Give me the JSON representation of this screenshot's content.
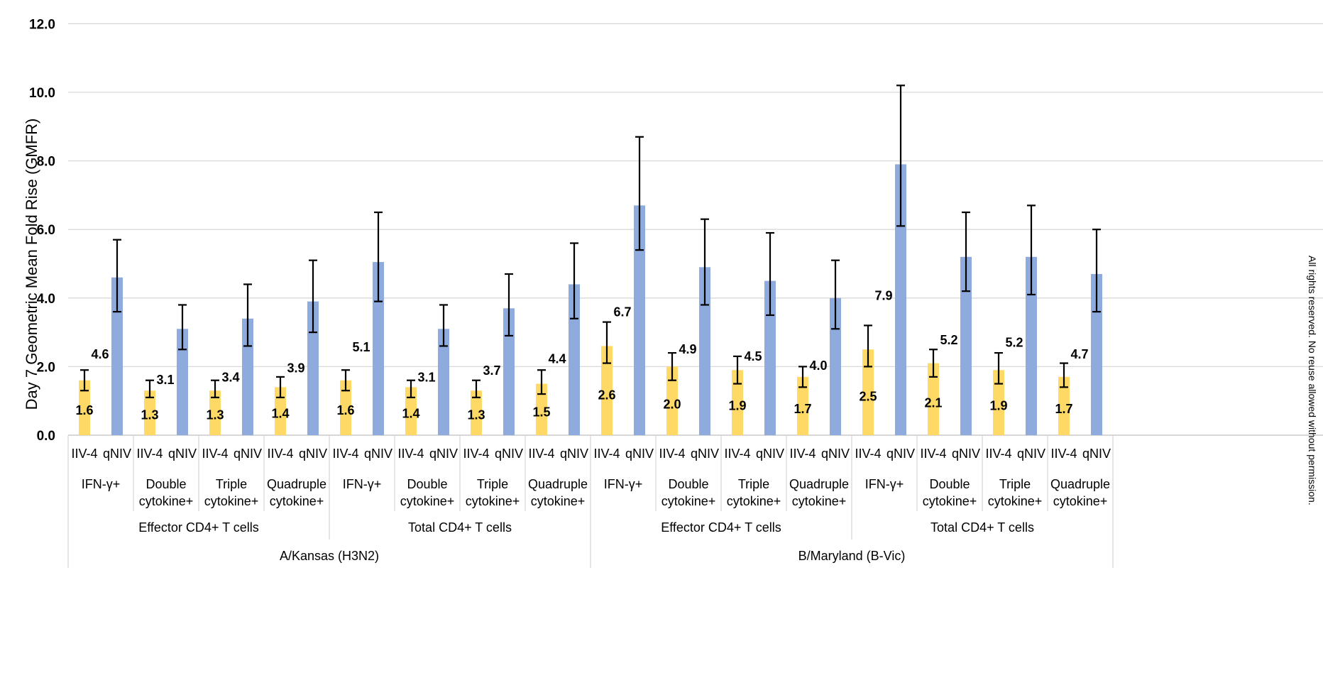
{
  "chart_data": {
    "type": "bar",
    "ylabel": "Day 7 Geometric Mean Fold Rise (GMFR)",
    "ylim": [
      0,
      12
    ],
    "yticks": [
      "0.0",
      "2.0",
      "4.0",
      "6.0",
      "8.0",
      "10.0",
      "12.0"
    ],
    "grid": true,
    "legend": "none",
    "colors": {
      "IIV-4": "#FFD966",
      "qNIV": "#8FAADC"
    },
    "categories": [
      [
        "IIV-4",
        "qNIV"
      ],
      [
        "IFN-γ+",
        "Double cytokine+",
        "Triple cytokine+",
        "Quadruple cytokine+"
      ],
      [
        "Effector CD4+ T cells",
        "Total CD4+ T cells"
      ],
      [
        "A/Kansas (H3N2)",
        "B/Maryland (B-Vic)"
      ]
    ],
    "bars": [
      {
        "vaccine": "IIV-4",
        "cytokine": "IFN-γ+",
        "cells": "Effector CD4+ T cells",
        "strain": "A/Kansas (H3N2)",
        "value": 1.6,
        "label": "1.6",
        "err_low": 1.3,
        "err_high": 1.9
      },
      {
        "vaccine": "qNIV",
        "cytokine": "IFN-γ+",
        "cells": "Effector CD4+ T cells",
        "strain": "A/Kansas (H3N2)",
        "value": 4.6,
        "label": "4.6",
        "err_low": 3.6,
        "err_high": 5.7
      },
      {
        "vaccine": "IIV-4",
        "cytokine": "Double cytokine+",
        "cells": "Effector CD4+ T cells",
        "strain": "A/Kansas (H3N2)",
        "value": 1.3,
        "label": "1.3",
        "err_low": 1.1,
        "err_high": 1.6
      },
      {
        "vaccine": "qNIV",
        "cytokine": "Double cytokine+",
        "cells": "Effector CD4+ T cells",
        "strain": "A/Kansas (H3N2)",
        "value": 3.1,
        "label": "3.1",
        "err_low": 2.5,
        "err_high": 3.8
      },
      {
        "vaccine": "IIV-4",
        "cytokine": "Triple cytokine+",
        "cells": "Effector CD4+ T cells",
        "strain": "A/Kansas (H3N2)",
        "value": 1.3,
        "label": "1.3",
        "err_low": 1.1,
        "err_high": 1.6
      },
      {
        "vaccine": "qNIV",
        "cytokine": "Triple cytokine+",
        "cells": "Effector CD4+ T cells",
        "strain": "A/Kansas (H3N2)",
        "value": 3.4,
        "label": "3.4",
        "err_low": 2.6,
        "err_high": 4.4
      },
      {
        "vaccine": "IIV-4",
        "cytokine": "Quadruple cytokine+",
        "cells": "Effector CD4+ T cells",
        "strain": "A/Kansas (H3N2)",
        "value": 1.4,
        "label": "1.4",
        "err_low": 1.1,
        "err_high": 1.7
      },
      {
        "vaccine": "qNIV",
        "cytokine": "Quadruple cytokine+",
        "cells": "Effector CD4+ T cells",
        "strain": "A/Kansas (H3N2)",
        "value": 3.9,
        "label": "3.9",
        "err_low": 3.0,
        "err_high": 5.1
      },
      {
        "vaccine": "IIV-4",
        "cytokine": "IFN-γ+",
        "cells": "Total CD4+ T cells",
        "strain": "A/Kansas (H3N2)",
        "value": 1.6,
        "label": "1.6",
        "err_low": 1.3,
        "err_high": 1.9
      },
      {
        "vaccine": "qNIV",
        "cytokine": "IFN-γ+",
        "cells": "Total CD4+ T cells",
        "strain": "A/Kansas (H3N2)",
        "value": 5.05,
        "label": "5.1",
        "err_low": 3.9,
        "err_high": 6.5
      },
      {
        "vaccine": "IIV-4",
        "cytokine": "Double cytokine+",
        "cells": "Total CD4+ T cells",
        "strain": "A/Kansas (H3N2)",
        "value": 1.4,
        "label": "1.4",
        "err_low": 1.1,
        "err_high": 1.6
      },
      {
        "vaccine": "qNIV",
        "cytokine": "Double cytokine+",
        "cells": "Total CD4+ T cells",
        "strain": "A/Kansas (H3N2)",
        "value": 3.1,
        "label": "3.1",
        "err_low": 2.6,
        "err_high": 3.8
      },
      {
        "vaccine": "IIV-4",
        "cytokine": "Triple cytokine+",
        "cells": "Total CD4+ T cells",
        "strain": "A/Kansas (H3N2)",
        "value": 1.3,
        "label": "1.3",
        "err_low": 1.1,
        "err_high": 1.6
      },
      {
        "vaccine": "qNIV",
        "cytokine": "Triple cytokine+",
        "cells": "Total CD4+ T cells",
        "strain": "A/Kansas (H3N2)",
        "value": 3.7,
        "label": "3.7",
        "err_low": 2.9,
        "err_high": 4.7
      },
      {
        "vaccine": "IIV-4",
        "cytokine": "Quadruple cytokine+",
        "cells": "Total CD4+ T cells",
        "strain": "A/Kansas (H3N2)",
        "value": 1.5,
        "label": "1.5",
        "err_low": 1.2,
        "err_high": 1.9
      },
      {
        "vaccine": "qNIV",
        "cytokine": "Quadruple cytokine+",
        "cells": "Total CD4+ T cells",
        "strain": "A/Kansas (H3N2)",
        "value": 4.4,
        "label": "4.4",
        "err_low": 3.4,
        "err_high": 5.6
      },
      {
        "vaccine": "IIV-4",
        "cytokine": "IFN-γ+",
        "cells": "Effector CD4+ T cells",
        "strain": "B/Maryland (B-Vic)",
        "value": 2.6,
        "label": "2.6",
        "err_low": 2.1,
        "err_high": 3.3
      },
      {
        "vaccine": "qNIV",
        "cytokine": "IFN-γ+",
        "cells": "Effector CD4+ T cells",
        "strain": "B/Maryland (B-Vic)",
        "value": 6.7,
        "label": "6.7",
        "err_low": 5.4,
        "err_high": 8.7
      },
      {
        "vaccine": "IIV-4",
        "cytokine": "Double cytokine+",
        "cells": "Effector CD4+ T cells",
        "strain": "B/Maryland (B-Vic)",
        "value": 2.0,
        "label": "2.0",
        "err_low": 1.6,
        "err_high": 2.4
      },
      {
        "vaccine": "qNIV",
        "cytokine": "Double cytokine+",
        "cells": "Effector CD4+ T cells",
        "strain": "B/Maryland (B-Vic)",
        "value": 4.9,
        "label": "4.9",
        "err_low": 3.8,
        "err_high": 6.3
      },
      {
        "vaccine": "IIV-4",
        "cytokine": "Triple cytokine+",
        "cells": "Effector CD4+ T cells",
        "strain": "B/Maryland (B-Vic)",
        "value": 1.9,
        "label": "1.9",
        "err_low": 1.5,
        "err_high": 2.3
      },
      {
        "vaccine": "qNIV",
        "cytokine": "Triple cytokine+",
        "cells": "Effector CD4+ T cells",
        "strain": "B/Maryland (B-Vic)",
        "value": 4.5,
        "label": "4.5",
        "err_low": 3.5,
        "err_high": 5.9
      },
      {
        "vaccine": "IIV-4",
        "cytokine": "Quadruple cytokine+",
        "cells": "Effector CD4+ T cells",
        "strain": "B/Maryland (B-Vic)",
        "value": 1.7,
        "label": "1.7",
        "err_low": 1.4,
        "err_high": 2.0
      },
      {
        "vaccine": "qNIV",
        "cytokine": "Quadruple cytokine+",
        "cells": "Effector CD4+ T cells",
        "strain": "B/Maryland (B-Vic)",
        "value": 4.0,
        "label": "4.0",
        "err_low": 3.1,
        "err_high": 5.1
      },
      {
        "vaccine": "IIV-4",
        "cytokine": "IFN-γ+",
        "cells": "Total CD4+ T cells",
        "strain": "B/Maryland (B-Vic)",
        "value": 2.5,
        "label": "2.5",
        "err_low": 2.0,
        "err_high": 3.2
      },
      {
        "vaccine": "qNIV",
        "cytokine": "IFN-γ+",
        "cells": "Total CD4+ T cells",
        "strain": "B/Maryland (B-Vic)",
        "value": 7.9,
        "label": "7.9",
        "err_low": 6.1,
        "err_high": 10.2
      },
      {
        "vaccine": "IIV-4",
        "cytokine": "Double cytokine+",
        "cells": "Total CD4+ T cells",
        "strain": "B/Maryland (B-Vic)",
        "value": 2.1,
        "label": "2.1",
        "err_low": 1.7,
        "err_high": 2.5
      },
      {
        "vaccine": "qNIV",
        "cytokine": "Double cytokine+",
        "cells": "Total CD4+ T cells",
        "strain": "B/Maryland (B-Vic)",
        "value": 5.2,
        "label": "5.2",
        "err_low": 4.2,
        "err_high": 6.5
      },
      {
        "vaccine": "IIV-4",
        "cytokine": "Triple cytokine+",
        "cells": "Total CD4+ T cells",
        "strain": "B/Maryland (B-Vic)",
        "value": 1.9,
        "label": "1.9",
        "err_low": 1.5,
        "err_high": 2.4
      },
      {
        "vaccine": "qNIV",
        "cytokine": "Triple cytokine+",
        "cells": "Total CD4+ T cells",
        "strain": "B/Maryland (B-Vic)",
        "value": 5.2,
        "label": "5.2",
        "err_low": 4.1,
        "err_high": 6.7
      },
      {
        "vaccine": "IIV-4",
        "cytokine": "Quadruple cytokine+",
        "cells": "Total CD4+ T cells",
        "strain": "B/Maryland (B-Vic)",
        "value": 1.7,
        "label": "1.7",
        "err_low": 1.4,
        "err_high": 2.1
      },
      {
        "vaccine": "qNIV",
        "cytokine": "Quadruple cytokine+",
        "cells": "Total CD4+ T cells",
        "strain": "B/Maryland (B-Vic)",
        "value": 4.7,
        "label": "4.7",
        "err_low": 3.6,
        "err_high": 6.0
      }
    ]
  },
  "side_note": "All rights reserved. No reuse allowed without permission."
}
